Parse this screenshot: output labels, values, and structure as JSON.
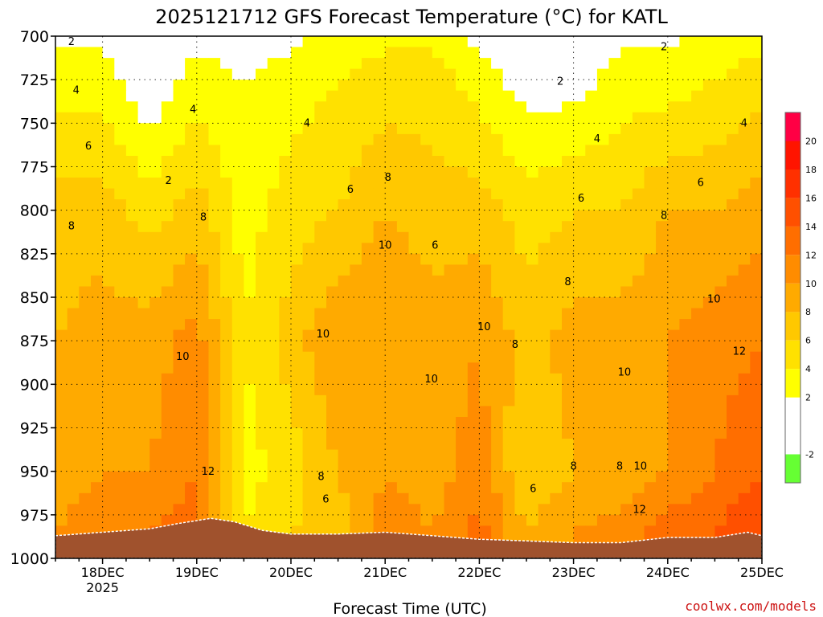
{
  "chart_data": {
    "type": "heatmap",
    "title": "2025121712 GFS Forecast Temperature (°C) for KATL",
    "xlabel": "Forecast Time (UTC)",
    "ylabel": "",
    "credit": "coolwx.com/models",
    "x_range_days": [
      17.5,
      25.0
    ],
    "x_ticks": [
      {
        "label": "18DEC",
        "sublabel": "2025",
        "day": 18
      },
      {
        "label": "19DEC",
        "day": 19
      },
      {
        "label": "20DEC",
        "day": 20
      },
      {
        "label": "21DEC",
        "day": 21
      },
      {
        "label": "22DEC",
        "day": 22
      },
      {
        "label": "23DEC",
        "day": 23
      },
      {
        "label": "24DEC",
        "day": 24
      },
      {
        "label": "25DEC",
        "day": 25
      }
    ],
    "y_range_hpa": [
      700,
      1000
    ],
    "y_ticks": [
      "700",
      "725",
      "750",
      "775",
      "800",
      "825",
      "850",
      "875",
      "900",
      "925",
      "950",
      "975",
      "1000"
    ],
    "colorbar": {
      "ticks": [
        "-2",
        "2",
        "4",
        "6",
        "8",
        "10",
        "12",
        "14",
        "16",
        "18",
        "20"
      ],
      "bands": [
        {
          "lo": -4,
          "hi": -2,
          "color": "#66ff33"
        },
        {
          "lo": -2,
          "hi": 2,
          "color": "#ffffff"
        },
        {
          "lo": 2,
          "hi": 4,
          "color": "#ffff00"
        },
        {
          "lo": 4,
          "hi": 6,
          "color": "#ffe100"
        },
        {
          "lo": 6,
          "hi": 8,
          "color": "#ffc800"
        },
        {
          "lo": 8,
          "hi": 10,
          "color": "#ffaa00"
        },
        {
          "lo": 10,
          "hi": 12,
          "color": "#ff8c00"
        },
        {
          "lo": 12,
          "hi": 14,
          "color": "#ff6e00"
        },
        {
          "lo": 14,
          "hi": 16,
          "color": "#ff5000"
        },
        {
          "lo": 16,
          "hi": 18,
          "color": "#ff3000"
        },
        {
          "lo": 18,
          "hi": 20,
          "color": "#ff1400"
        },
        {
          "lo": 20,
          "hi": 22,
          "color": "#ff0044"
        }
      ]
    },
    "contour_interval_c": 2,
    "series": [
      {
        "name": "level 725 hPa",
        "times": [
          17.5,
          18.0,
          18.5,
          19.0,
          19.5,
          20.0,
          20.5,
          21.0,
          21.5,
          22.0,
          22.5,
          23.0,
          23.5,
          24.0,
          24.5,
          25.0
        ],
        "values": [
          3,
          3,
          0,
          3,
          2,
          3,
          4,
          5,
          5,
          3,
          1,
          1,
          3,
          3,
          4,
          5
        ]
      },
      {
        "name": "level 800 hPa",
        "times": [
          17.5,
          18.0,
          18.5,
          19.0,
          19.5,
          20.0,
          20.5,
          21.0,
          21.5,
          22.0,
          22.5,
          23.0,
          23.5,
          24.0,
          24.5,
          25.0
        ],
        "values": [
          7,
          7,
          5,
          7,
          3,
          5,
          6,
          8,
          7,
          7,
          5,
          6,
          6,
          8,
          8,
          9
        ]
      },
      {
        "name": "level 875 hPa",
        "times": [
          17.5,
          18.0,
          18.5,
          19.0,
          19.5,
          20.0,
          20.5,
          21.0,
          21.5,
          22.0,
          22.5,
          23.0,
          23.5,
          24.0,
          24.5,
          25.0
        ],
        "values": [
          8,
          9,
          9,
          11,
          4,
          7,
          10,
          10,
          9,
          10,
          7,
          9,
          9,
          10,
          11,
          12
        ]
      },
      {
        "name": "level 950 hPa",
        "times": [
          17.5,
          18.0,
          18.5,
          19.0,
          19.5,
          20.0,
          20.5,
          21.0,
          21.5,
          22.0,
          22.5,
          23.0,
          23.5,
          24.0,
          24.5,
          25.0
        ],
        "values": [
          9,
          10,
          10,
          12,
          3,
          5,
          8,
          10,
          9,
          11,
          6,
          8,
          8,
          10,
          12,
          14
        ]
      },
      {
        "name": "level 985 hPa",
        "times": [
          17.5,
          18.0,
          18.5,
          19.0,
          19.5,
          20.0,
          20.5,
          21.0,
          21.5,
          22.0,
          22.5,
          23.0,
          23.5,
          24.0,
          24.5,
          25.0
        ],
        "values": [
          10,
          11,
          12,
          13,
          4,
          6,
          7,
          11,
          10,
          13,
          8,
          10,
          11,
          13,
          14,
          16
        ]
      }
    ],
    "contour_labels": [
      {
        "text": "2",
        "day": 17.67,
        "p": 705
      },
      {
        "text": "4",
        "day": 17.72,
        "p": 733
      },
      {
        "text": "6",
        "day": 17.85,
        "p": 765
      },
      {
        "text": "8",
        "day": 17.67,
        "p": 811
      },
      {
        "text": "2",
        "day": 18.7,
        "p": 785
      },
      {
        "text": "4",
        "day": 18.96,
        "p": 744
      },
      {
        "text": "8",
        "day": 19.07,
        "p": 806
      },
      {
        "text": "10",
        "day": 18.85,
        "p": 886
      },
      {
        "text": "12",
        "day": 19.12,
        "p": 952
      },
      {
        "text": "4",
        "day": 20.17,
        "p": 752
      },
      {
        "text": "10",
        "day": 20.34,
        "p": 873
      },
      {
        "text": "8",
        "day": 20.32,
        "p": 955
      },
      {
        "text": "6",
        "day": 20.37,
        "p": 968
      },
      {
        "text": "6",
        "day": 20.63,
        "p": 790
      },
      {
        "text": "8",
        "day": 21.03,
        "p": 783
      },
      {
        "text": "10",
        "day": 21.0,
        "p": 822
      },
      {
        "text": "6",
        "day": 21.53,
        "p": 822
      },
      {
        "text": "10",
        "day": 21.49,
        "p": 899
      },
      {
        "text": "10",
        "day": 22.05,
        "p": 869
      },
      {
        "text": "8",
        "day": 22.38,
        "p": 879
      },
      {
        "text": "6",
        "day": 22.57,
        "p": 962
      },
      {
        "text": "2",
        "day": 22.86,
        "p": 728
      },
      {
        "text": "6",
        "day": 23.08,
        "p": 795
      },
      {
        "text": "8",
        "day": 22.94,
        "p": 843
      },
      {
        "text": "8",
        "day": 23.0,
        "p": 949
      },
      {
        "text": "8",
        "day": 23.49,
        "p": 949
      },
      {
        "text": "4",
        "day": 23.25,
        "p": 761
      },
      {
        "text": "10",
        "day": 23.54,
        "p": 895
      },
      {
        "text": "10",
        "day": 23.71,
        "p": 949
      },
      {
        "text": "12",
        "day": 23.7,
        "p": 974
      },
      {
        "text": "8",
        "day": 23.96,
        "p": 805
      },
      {
        "text": "10",
        "day": 24.49,
        "p": 853
      },
      {
        "text": "12",
        "day": 24.76,
        "p": 883
      },
      {
        "text": "6",
        "day": 24.35,
        "p": 786
      },
      {
        "text": "4",
        "day": 24.81,
        "p": 752
      },
      {
        "text": "2",
        "day": 23.96,
        "p": 708
      }
    ],
    "terrain_surface_hpa": [
      {
        "day": 17.5,
        "p": 987
      },
      {
        "day": 18.0,
        "p": 985
      },
      {
        "day": 18.5,
        "p": 983
      },
      {
        "day": 18.8,
        "p": 980
      },
      {
        "day": 19.15,
        "p": 977
      },
      {
        "day": 19.4,
        "p": 979
      },
      {
        "day": 19.7,
        "p": 984
      },
      {
        "day": 20.0,
        "p": 986
      },
      {
        "day": 20.5,
        "p": 986
      },
      {
        "day": 21.0,
        "p": 985
      },
      {
        "day": 21.5,
        "p": 987
      },
      {
        "day": 22.0,
        "p": 989
      },
      {
        "day": 22.5,
        "p": 990
      },
      {
        "day": 23.0,
        "p": 991
      },
      {
        "day": 23.5,
        "p": 991
      },
      {
        "day": 24.0,
        "p": 988
      },
      {
        "day": 24.5,
        "p": 988
      },
      {
        "day": 24.85,
        "p": 985
      },
      {
        "day": 25.0,
        "p": 987
      }
    ]
  }
}
